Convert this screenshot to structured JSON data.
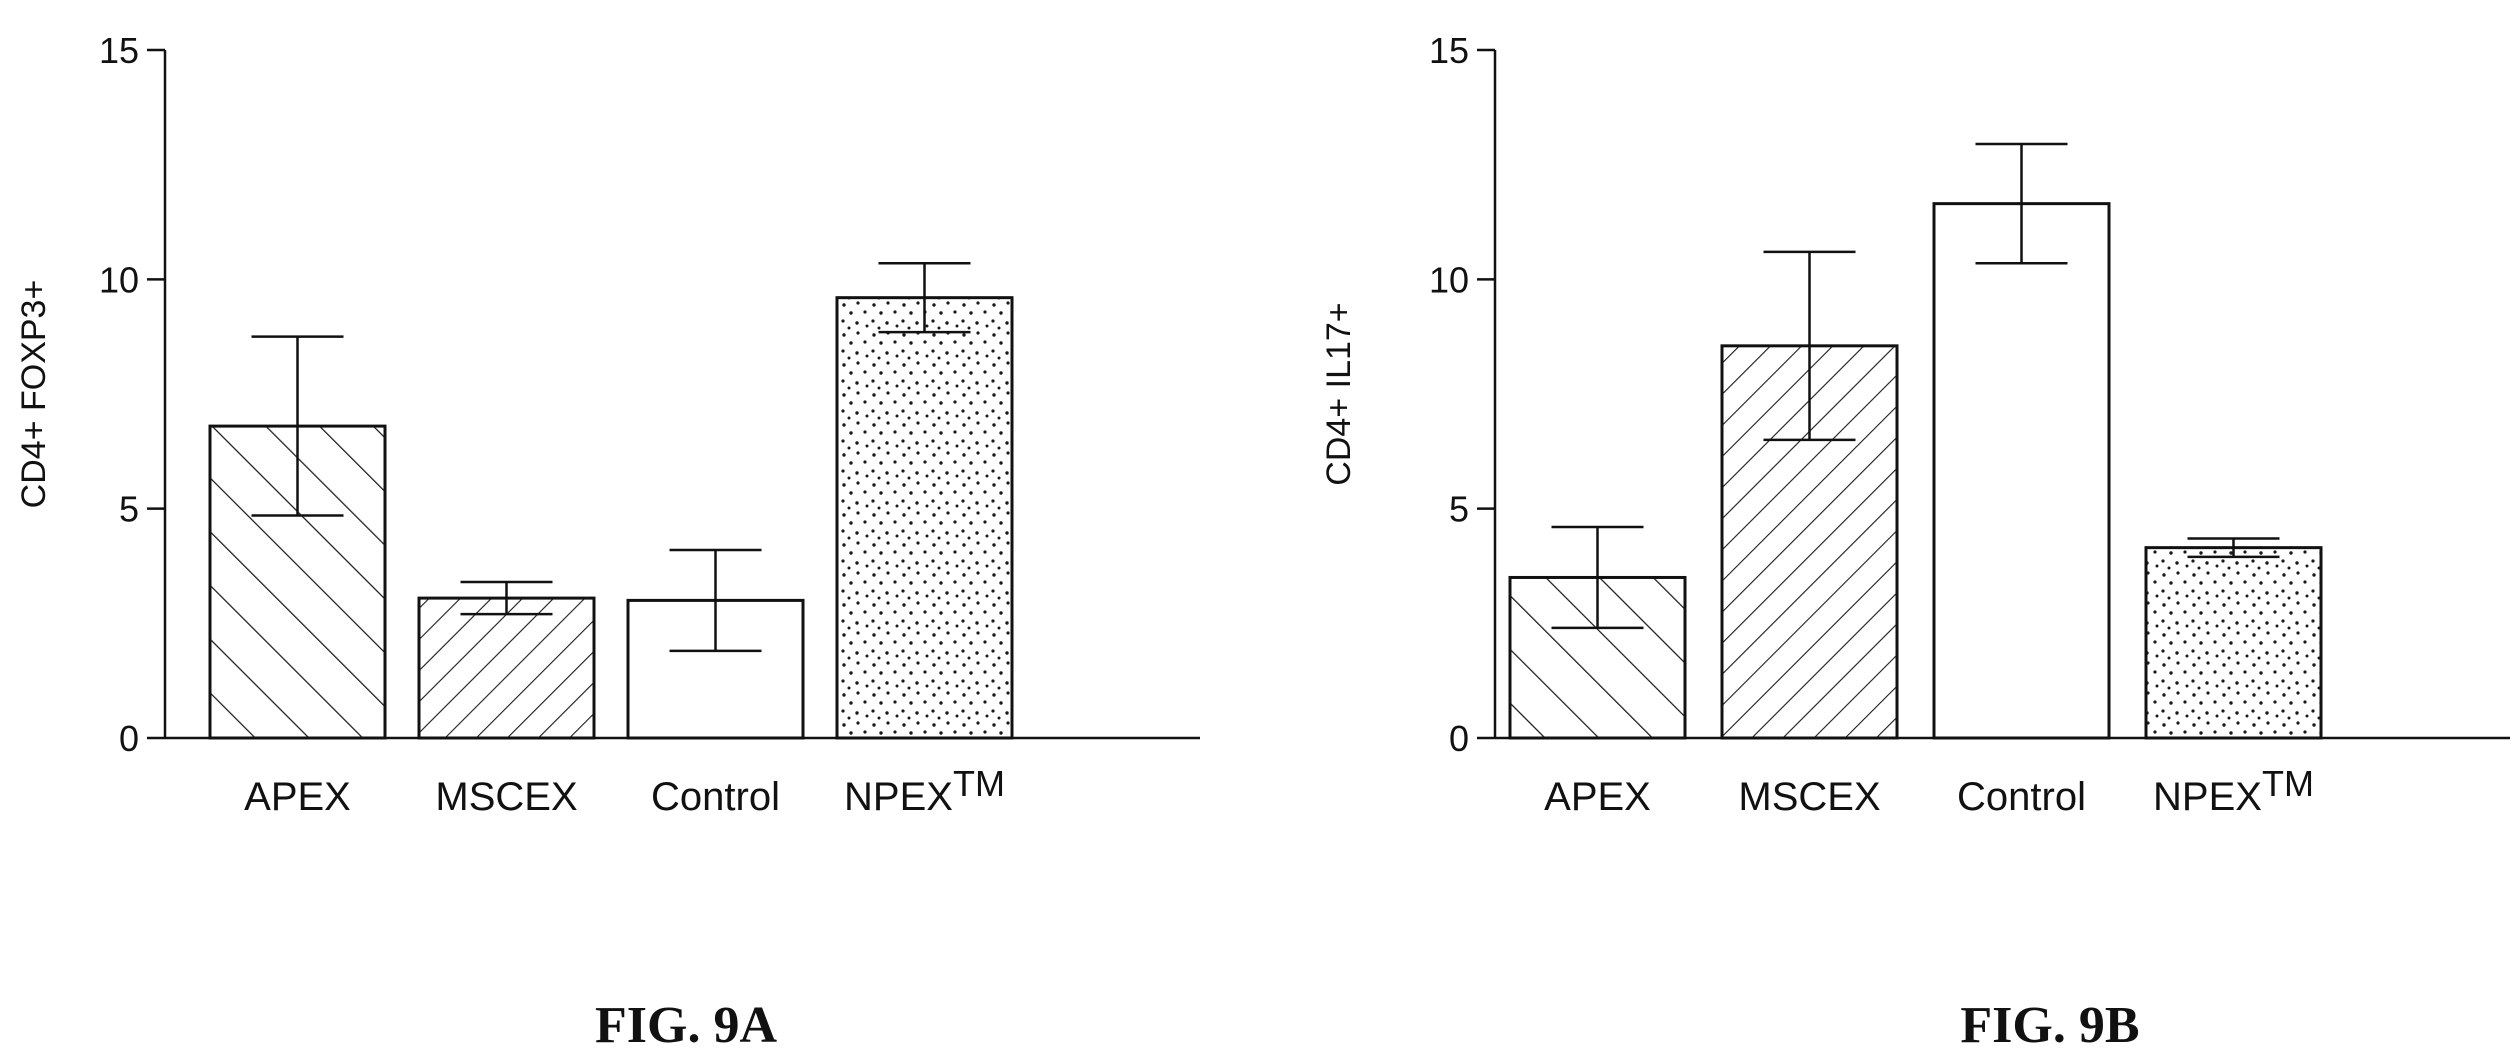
{
  "chart_data": [
    {
      "type": "bar",
      "panel": "FIG. 9A",
      "ylabel": "CD4+ FOXP3+",
      "ylim": [
        0,
        15
      ],
      "yticks": [
        0,
        5,
        10,
        15
      ],
      "categories": [
        "APEX",
        "MSCEX",
        "Control",
        "NPEX"
      ],
      "category_superscripts": [
        "",
        "",
        "",
        "TM"
      ],
      "values": [
        6.8,
        3.05,
        3.0,
        9.6
      ],
      "errors": [
        1.95,
        0.35,
        1.1,
        0.75
      ],
      "fill_patterns": [
        "hatch-forward",
        "hatch-back",
        "none",
        "stipple"
      ],
      "grid": false,
      "legend": "none"
    },
    {
      "type": "bar",
      "panel": "FIG. 9B",
      "ylabel": "CD4+ IL17+",
      "ylim": [
        0,
        15
      ],
      "yticks": [
        0,
        5,
        10,
        15
      ],
      "categories": [
        "APEX",
        "MSCEX",
        "Control",
        "NPEX"
      ],
      "category_superscripts": [
        "",
        "",
        "",
        "TM"
      ],
      "values": [
        3.5,
        8.55,
        11.65,
        4.15
      ],
      "errors": [
        1.1,
        2.05,
        1.3,
        0.2
      ],
      "fill_patterns": [
        "hatch-forward",
        "hatch-back",
        "none",
        "stipple"
      ],
      "grid": false,
      "legend": "none"
    }
  ],
  "captions": [
    "FIG. 9A",
    "FIG. 9B"
  ]
}
